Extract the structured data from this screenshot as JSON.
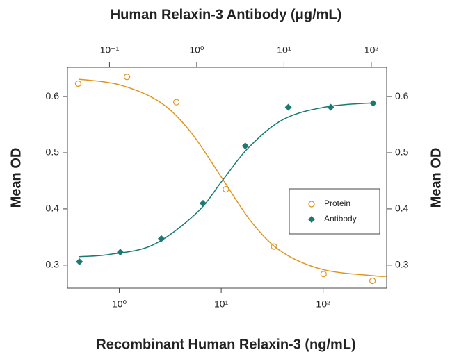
{
  "chart_data": {
    "type": "scatter",
    "title": "Human Relaxin-3 Antibody (μg/mL)",
    "x_label": "Recombinant Human Relaxin-3 (ng/mL)",
    "y_label": "Mean OD",
    "y2_label": "Mean OD",
    "xscale": "log",
    "xlim": [
      0.31,
      420
    ],
    "xticks": [
      {
        "value": 1,
        "label": "10⁰"
      },
      {
        "value": 10,
        "label": "10¹"
      },
      {
        "value": 100,
        "label": "10²"
      }
    ],
    "x2lim": [
      0.033,
      150
    ],
    "x2ticks": [
      {
        "value": 0.1,
        "label": "10⁻¹"
      },
      {
        "value": 1,
        "label": "10⁰"
      },
      {
        "value": 10,
        "label": "10¹"
      },
      {
        "value": 100,
        "label": "10²"
      }
    ],
    "ylim": [
      0.259,
      0.652
    ],
    "yticks": [
      0.3,
      0.4,
      0.5,
      0.6
    ],
    "y2lim": [
      0.259,
      0.652
    ],
    "y2ticks": [
      0.3,
      0.4,
      0.5,
      0.6
    ],
    "legend": "right",
    "series": [
      {
        "name": "Protein",
        "color": "#e0961e",
        "marker": "circle-open",
        "xaxis": "x",
        "x": [
          0.395,
          1.19,
          3.63,
          11.1,
          33,
          101,
          305
        ],
        "values": [
          0.623,
          0.635,
          0.59,
          0.435,
          0.333,
          0.284,
          0.272
        ],
        "curve_x": [
          0.398,
          1,
          2.51,
          5.01,
          10,
          19.95,
          39.8,
          100,
          316,
          417
        ],
        "curve_values": [
          0.631,
          0.621,
          0.59,
          0.537,
          0.457,
          0.376,
          0.323,
          0.292,
          0.281,
          0.28
        ]
      },
      {
        "name": "Antibody",
        "color": "#1a7a72",
        "marker": "diamond",
        "xaxis": "x2",
        "x": [
          0.0453,
          0.133,
          0.393,
          1.18,
          3.6,
          11.2,
          34.3,
          105
        ],
        "values": [
          0.306,
          0.323,
          0.347,
          0.41,
          0.512,
          0.581,
          0.581,
          0.588
        ],
        "curve_x": [
          0.0447,
          0.1,
          0.316,
          1,
          2,
          3.98,
          10,
          31.6,
          112
        ],
        "curve_values": [
          0.315,
          0.319,
          0.336,
          0.393,
          0.452,
          0.51,
          0.56,
          0.582,
          0.589
        ]
      }
    ]
  }
}
